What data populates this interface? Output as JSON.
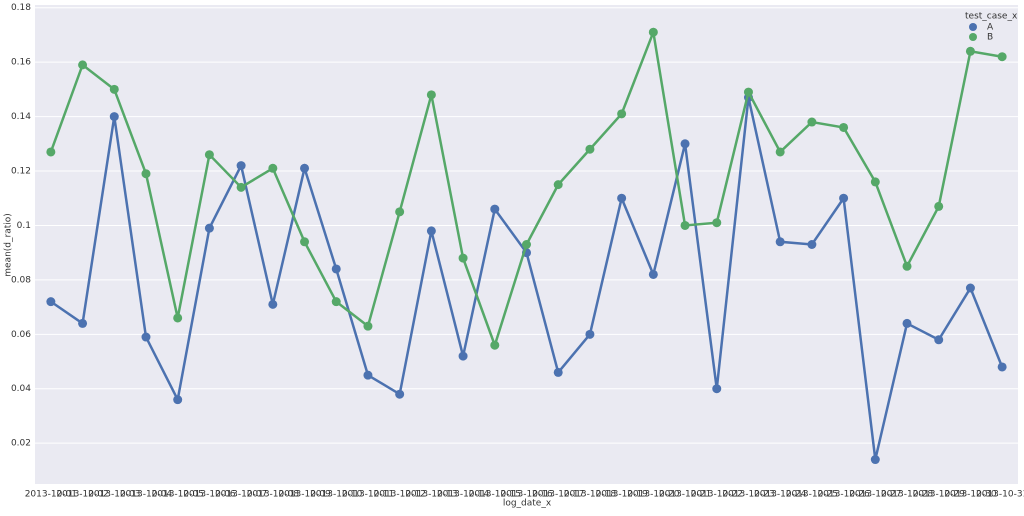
{
  "chart_data": {
    "type": "line",
    "x_label": "log_date_x",
    "y_label": "mean(d_ratio)",
    "legend_title": "test_case_x",
    "legend_position": "upper right",
    "categories": [
      "2013-10-01",
      "2013-10-02",
      "2013-10-03",
      "2013-10-04",
      "2013-10-05",
      "2013-10-06",
      "2013-10-07",
      "2013-10-08",
      "2013-10-09",
      "2013-10-10",
      "2013-10-11",
      "2013-10-12",
      "2013-10-13",
      "2013-10-14",
      "2013-10-15",
      "2013-10-16",
      "2013-10-17",
      "2013-10-18",
      "2013-10-19",
      "2013-10-20",
      "2013-10-21",
      "2013-10-22",
      "2013-10-23",
      "2013-10-24",
      "2013-10-25",
      "2013-10-26",
      "2013-10-27",
      "2013-10-28",
      "2013-10-29",
      "2013-10-30",
      "2013-10-31"
    ],
    "series": [
      {
        "name": "A",
        "color": "#4c72b0",
        "values": [
          0.072,
          0.064,
          0.14,
          0.059,
          0.036,
          0.099,
          0.122,
          0.071,
          0.121,
          0.084,
          0.045,
          0.038,
          0.098,
          0.052,
          0.106,
          0.09,
          0.046,
          0.06,
          0.11,
          0.082,
          0.13,
          0.04,
          0.147,
          0.094,
          0.093,
          0.11,
          0.014,
          0.064,
          0.058,
          0.077,
          0.048
        ]
      },
      {
        "name": "B",
        "color": "#55a868",
        "values": [
          0.127,
          0.159,
          0.15,
          0.119,
          0.066,
          0.126,
          0.114,
          0.121,
          0.094,
          0.072,
          0.063,
          0.105,
          0.148,
          0.088,
          0.056,
          0.093,
          0.115,
          0.128,
          0.141,
          0.171,
          0.1,
          0.101,
          0.149,
          0.127,
          0.138,
          0.136,
          0.116,
          0.085,
          0.107,
          0.164,
          0.162
        ]
      }
    ],
    "ylim": [
      0.005,
      0.181
    ],
    "yticks": [
      0.02,
      0.04,
      0.06,
      0.08,
      0.1,
      0.12,
      0.14,
      0.16,
      0.18
    ],
    "grid": true
  }
}
